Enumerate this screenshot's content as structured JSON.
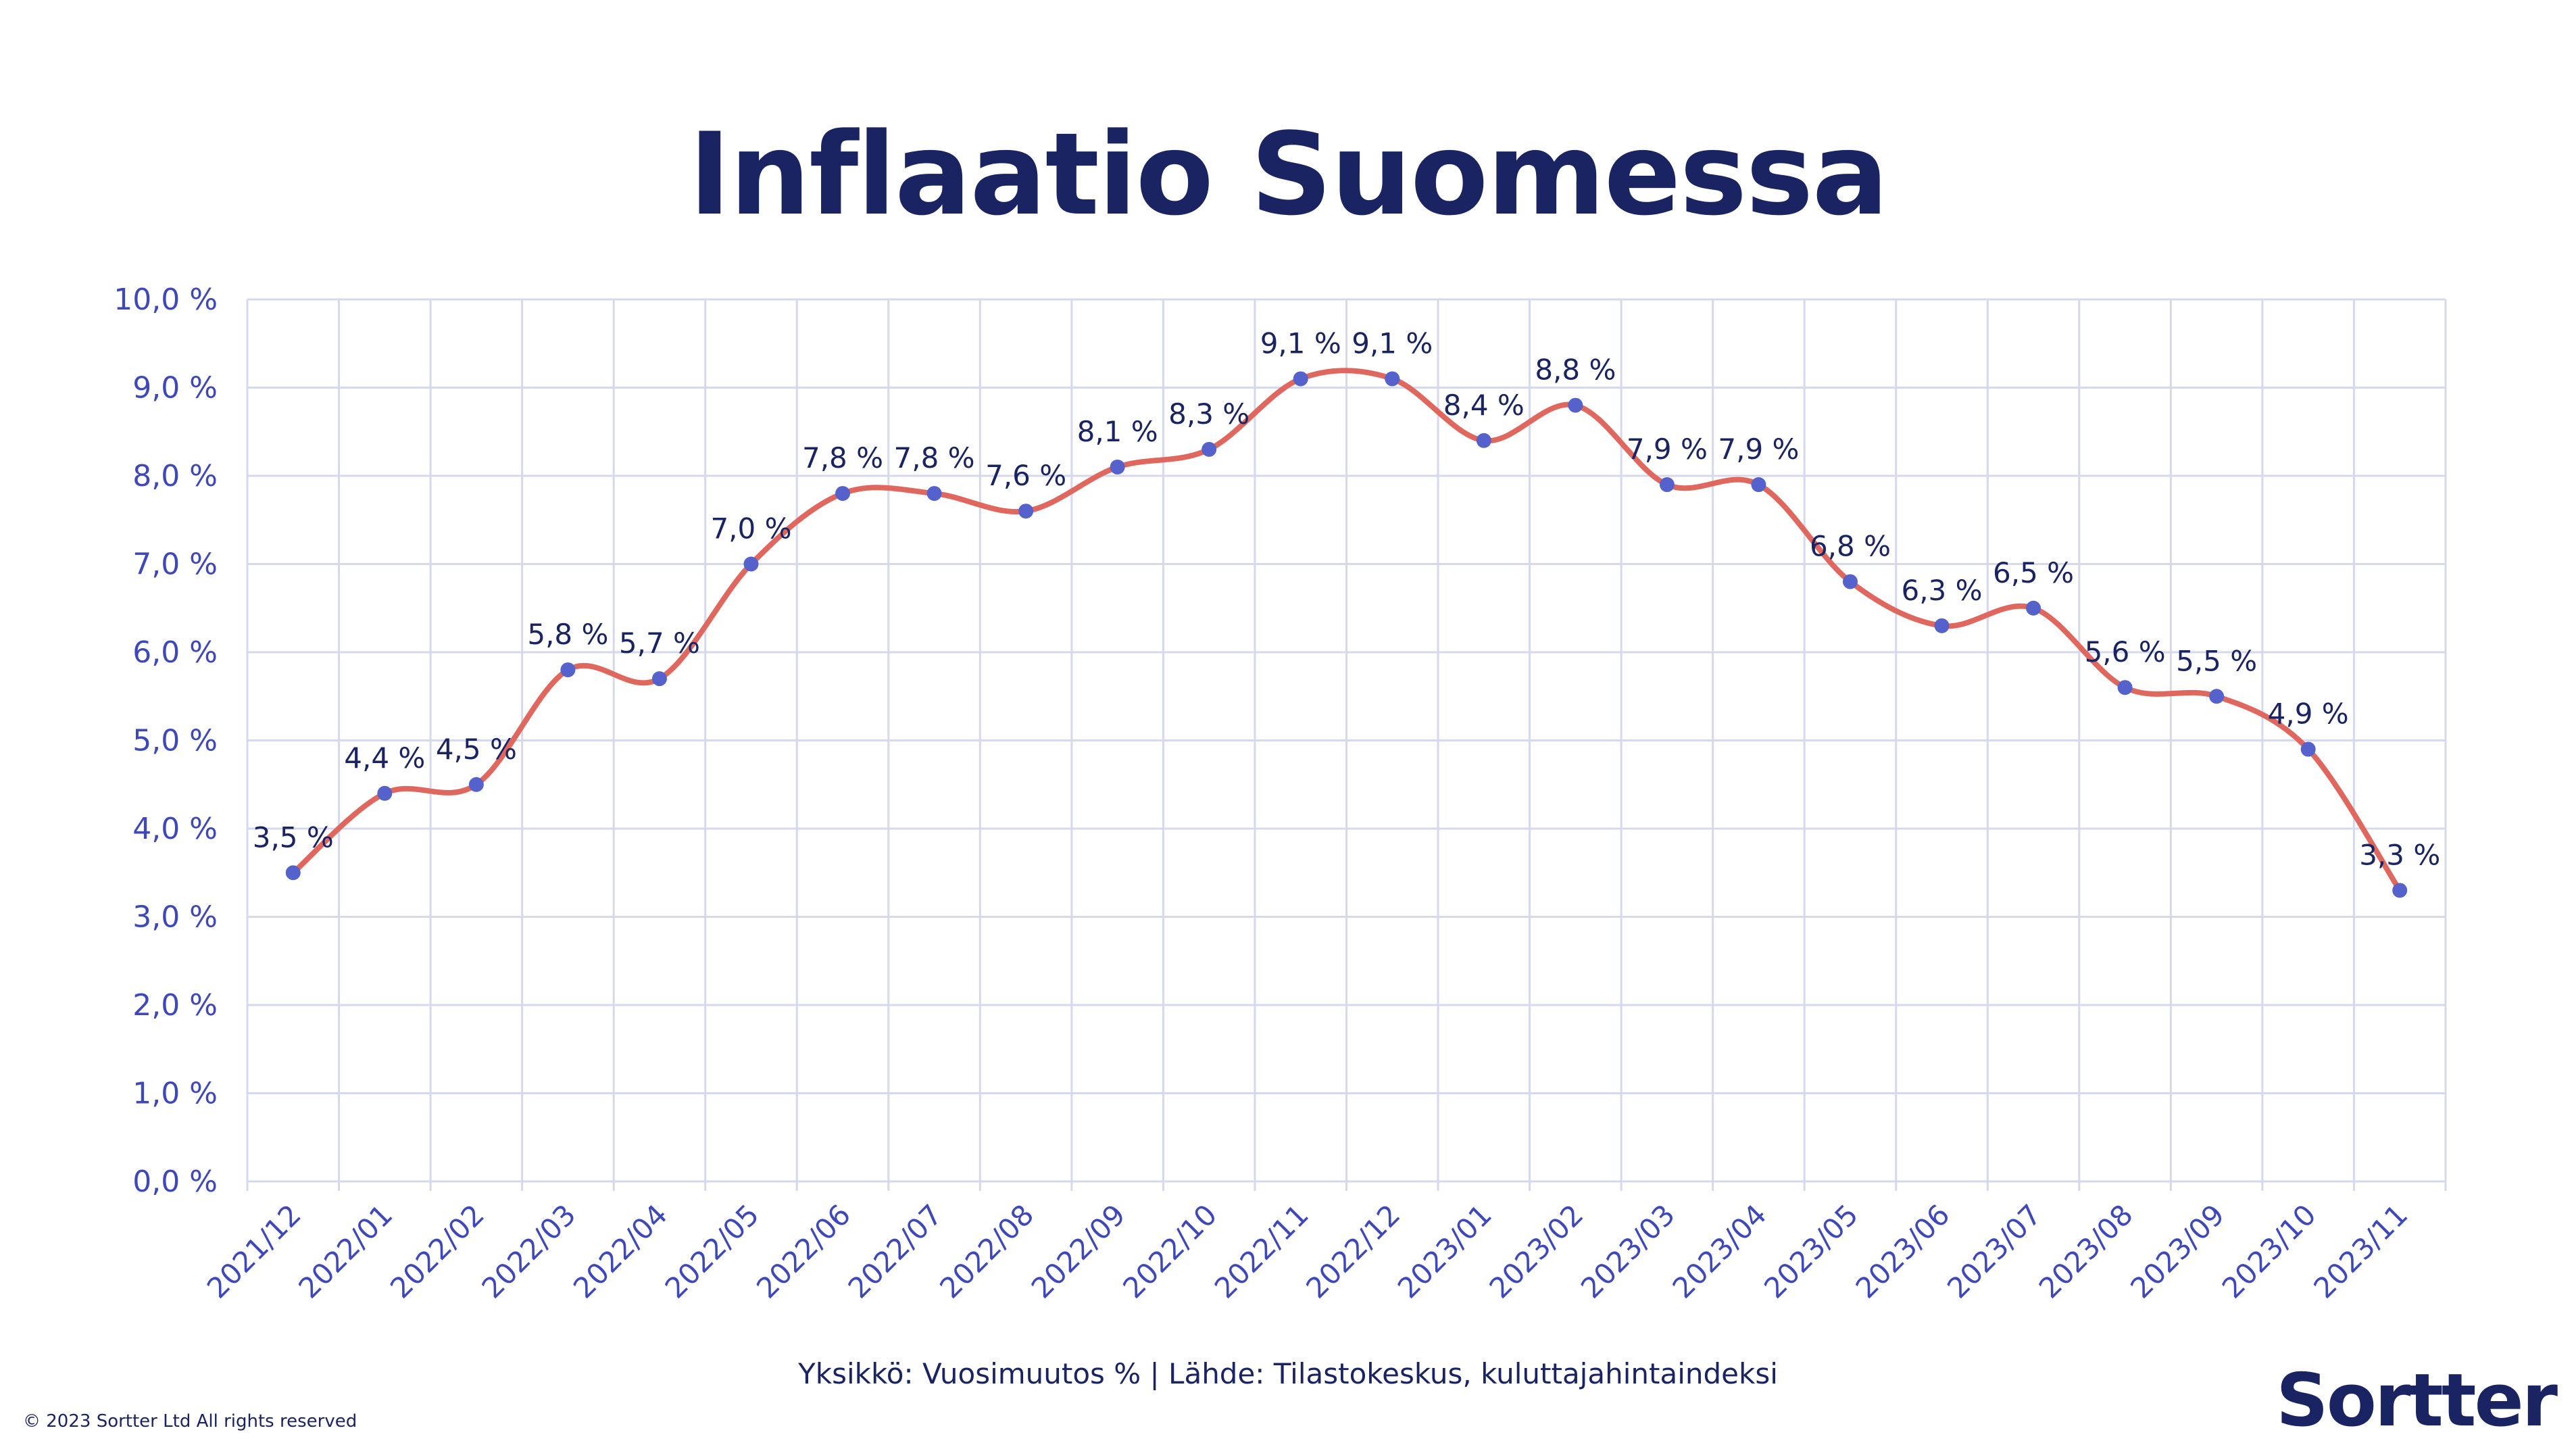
{
  "title": "Inflaatio Suomessa",
  "caption": "Yksikkö: Vuosimuutos % | Lähde: Tilastokeskus, kuluttajahintaindeksi",
  "copyright": "© 2023 Sortter Ltd All rights reserved",
  "logo": "Sortter",
  "colors": {
    "title": "#1b2463",
    "axis_text": "#3f48b8",
    "grid": "#d6d8ee",
    "line": "#e0675e",
    "point": "#5562cc",
    "label": "#1b2463"
  },
  "chart_data": {
    "type": "line",
    "categories": [
      "2021/12",
      "2022/01",
      "2022/02",
      "2022/03",
      "2022/04",
      "2022/05",
      "2022/06",
      "2022/07",
      "2022/08",
      "2022/09",
      "2022/10",
      "2022/11",
      "2022/12",
      "2023/01",
      "2023/02",
      "2023/03",
      "2023/04",
      "2023/05",
      "2023/06",
      "2023/07",
      "2023/08",
      "2023/09",
      "2023/10",
      "2023/11"
    ],
    "values": [
      3.5,
      4.4,
      4.5,
      5.8,
      5.7,
      7.0,
      7.8,
      7.8,
      7.6,
      8.1,
      8.3,
      9.1,
      9.1,
      8.4,
      8.8,
      7.9,
      7.9,
      6.8,
      6.3,
      6.5,
      5.6,
      5.5,
      4.9,
      3.3
    ],
    "data_labels": [
      "3,5 %",
      "4,4 %",
      "4,5 %",
      "5,8 %",
      "5,7 %",
      "7,0 %",
      "7,8 %",
      "7,8 %",
      "7,6 %",
      "8,1 %",
      "8,3 %",
      "9,1 %",
      "9,1 %",
      "8,4 %",
      "8,8 %",
      "7,9 %",
      "7,9 %",
      "6,8 %",
      "6,3 %",
      "6,5 %",
      "5,6 %",
      "5,5 %",
      "4,9 %",
      "3,3 %"
    ],
    "y_ticks": [
      "0,0 %",
      "1,0 %",
      "2,0 %",
      "3,0 %",
      "4,0 %",
      "5,0 %",
      "6,0 %",
      "7,0 %",
      "8,0 %",
      "9,0 %",
      "10,0 %"
    ],
    "ylim": [
      0,
      10
    ],
    "grid": true,
    "smooth": true
  }
}
